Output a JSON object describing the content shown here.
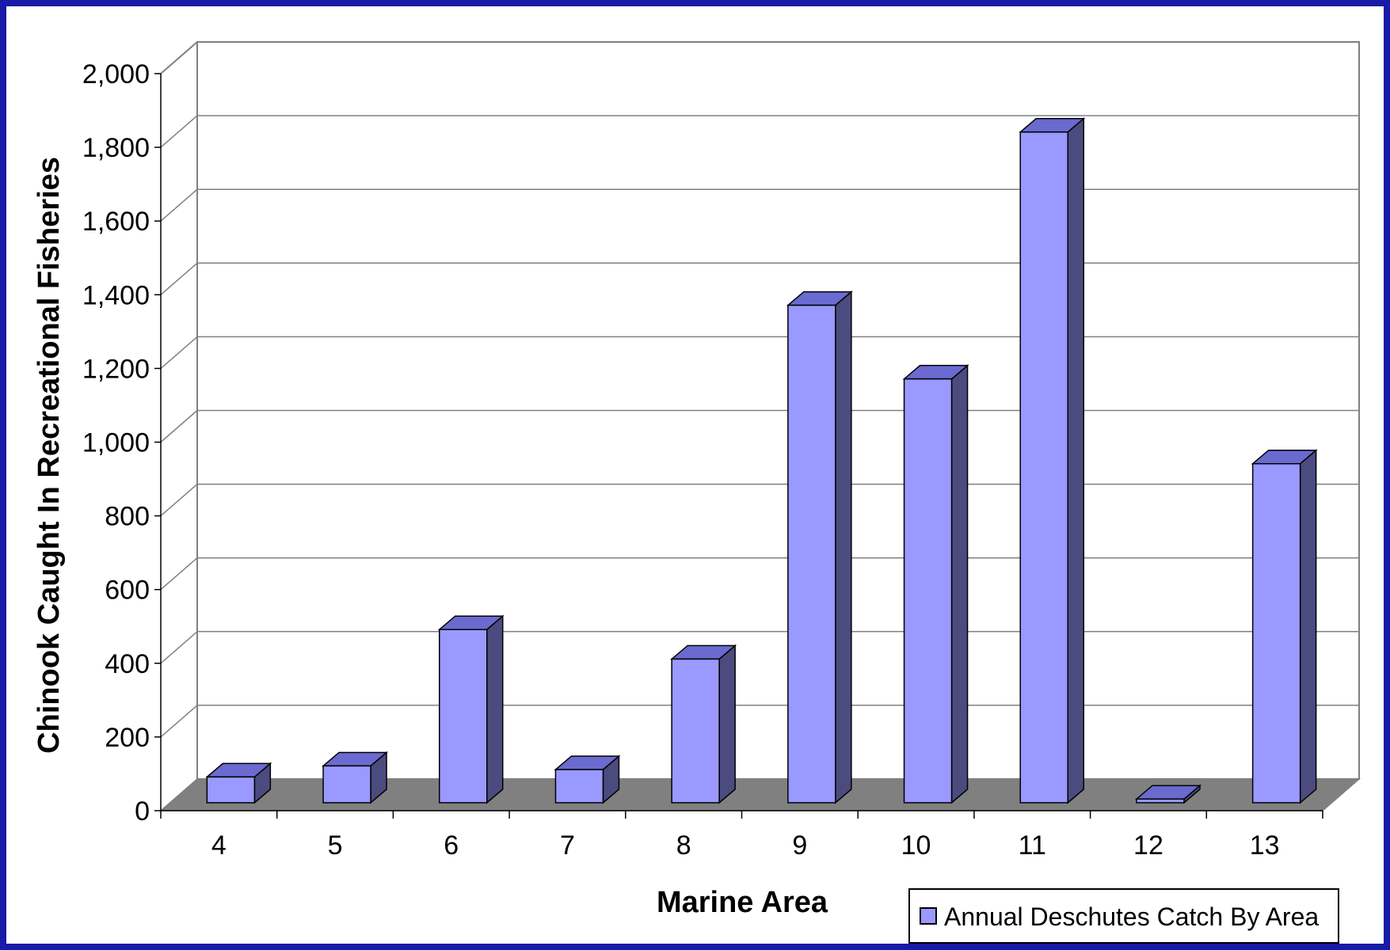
{
  "chart_data": {
    "type": "bar",
    "title": "",
    "xlabel": "Marine Area",
    "ylabel": "Chinook Caught In Recreational Fisheries",
    "categories": [
      "4",
      "5",
      "6",
      "7",
      "8",
      "9",
      "10",
      "11",
      "12",
      "13"
    ],
    "series": [
      {
        "name": "Annual Deschutes Catch By Area",
        "values": [
          70,
          100,
          470,
          90,
          390,
          1350,
          1150,
          1820,
          10,
          920
        ]
      }
    ],
    "ylim": [
      0,
      2000
    ],
    "yticks": [
      0,
      200,
      400,
      600,
      800,
      1000,
      1200,
      1400,
      1600,
      1800,
      2000
    ],
    "ytick_labels": [
      "0",
      "200",
      "400",
      "600",
      "800",
      "1,000",
      "1,200",
      "1,400",
      "1,600",
      "1,800",
      "2,000"
    ],
    "grid": true,
    "style": "3d-bar",
    "legend_position": "bottom-right",
    "colors": {
      "frame": "#1a1aa8",
      "background": "#ffffff",
      "bar_front": "#9999ff",
      "bar_side": "#4b4b80",
      "bar_top": "#6a6ad0",
      "floor": "#808080",
      "grid": "#808080"
    }
  }
}
